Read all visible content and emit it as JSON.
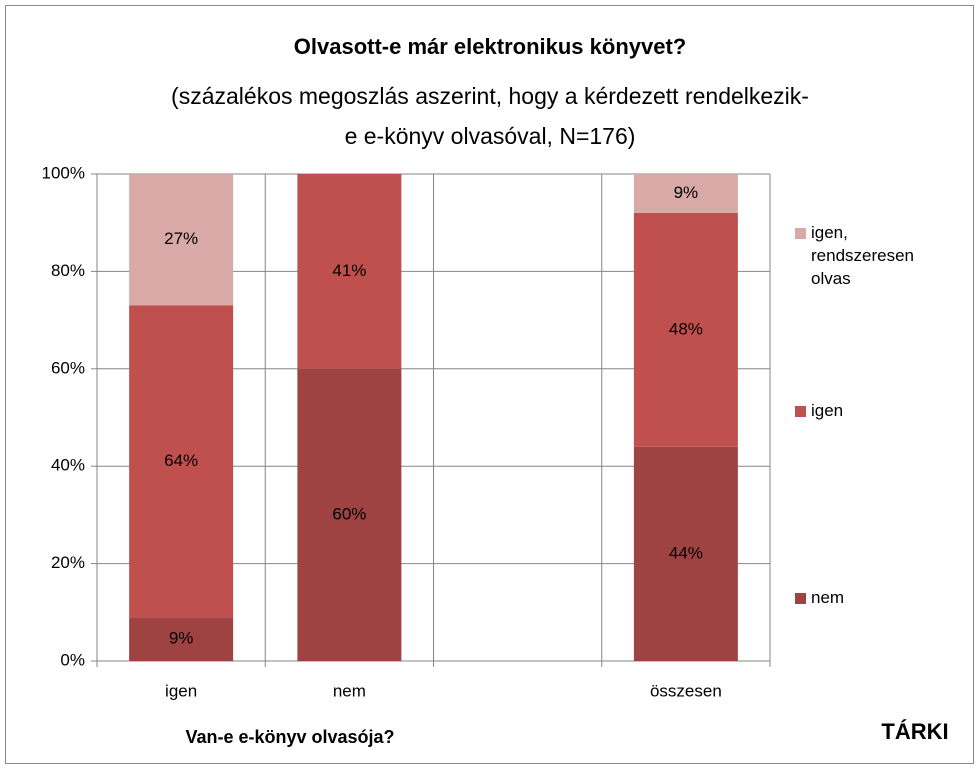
{
  "chart_data": {
    "type": "stacked_bar",
    "title": "Olvasott-e már elektronikus könyvet?",
    "subtitle": "(százalékos megoszlás aszerint, hogy a kérdezett rendelkezik-e e-könyv olvasóval, N=176)",
    "x_label": "Van-e e-könyv olvasója?",
    "annotation": "TÁRKI",
    "categories": [
      "igen",
      "nem",
      null,
      "összesen"
    ],
    "series": [
      {
        "name": "nem",
        "color": "#9e4341",
        "values": [
          9,
          60,
          null,
          44
        ],
        "value_labels": [
          "9%",
          "60%",
          null,
          "44%"
        ]
      },
      {
        "name": "igen",
        "color": "#c0504d",
        "values": [
          64,
          41,
          null,
          48
        ],
        "value_labels": [
          "64%",
          "41%",
          null,
          "48%"
        ]
      },
      {
        "name": "igen, rendszeresen olvas",
        "color": "#d9a9a8",
        "values": [
          27,
          null,
          null,
          9
        ],
        "value_labels": [
          "27%",
          null,
          null,
          "9%"
        ]
      }
    ],
    "ylim": [
      0,
      100
    ],
    "yticks": [
      {
        "value": 0,
        "label": "0%"
      },
      {
        "value": 20,
        "label": "20%"
      },
      {
        "value": 40,
        "label": "40%"
      },
      {
        "value": 60,
        "label": "60%"
      },
      {
        "value": 80,
        "label": "80%"
      },
      {
        "value": 100,
        "label": "100%"
      }
    ],
    "grid": true,
    "legend": "right"
  }
}
